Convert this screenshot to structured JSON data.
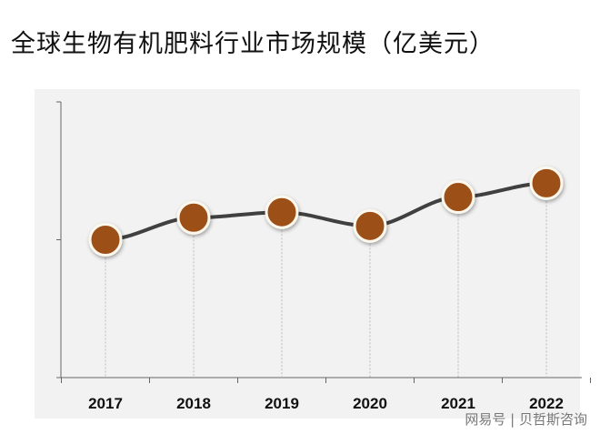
{
  "title": "全球生物有机肥料行业市场规模（亿美元）",
  "watermark": "网易号 | 贝哲斯咨询",
  "chart_data": {
    "type": "line",
    "title": "全球生物有机肥料行业市场规模（亿美元）",
    "categories": [
      "2017",
      "2018",
      "2019",
      "2020",
      "2021",
      "2022"
    ],
    "values": [
      1.0,
      1.16,
      1.2,
      1.1,
      1.31,
      1.41
    ],
    "ylim": [
      0,
      2
    ],
    "y_ticks_labeled": false,
    "grid": false,
    "legend": "none",
    "colors": {
      "line": "#404040",
      "marker": "#9c4f13",
      "marker_ring": "#ffffff",
      "background": "#f2f2f2"
    }
  }
}
